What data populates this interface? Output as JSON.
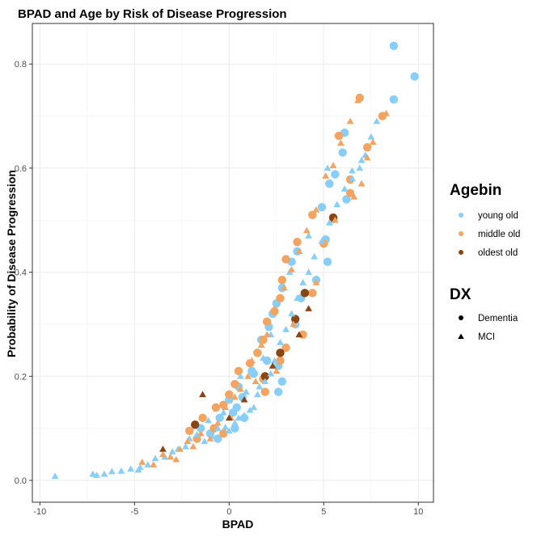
{
  "chart_data": {
    "type": "scatter",
    "title": "BPAD and Age by Risk of Disease Progression",
    "xlabel": "BPAD",
    "ylabel": "Probability of Disease Progression",
    "xlim": [
      -10.4,
      10.8
    ],
    "ylim": [
      -0.042,
      0.878
    ],
    "x_ticks": [
      -10,
      -5,
      0,
      5,
      10
    ],
    "y_ticks": [
      0.0,
      0.2,
      0.4,
      0.6,
      0.8
    ],
    "x_tick_labels": [
      "-10",
      "-5",
      "0",
      "5",
      "10"
    ],
    "y_tick_labels": [
      "0.0",
      "0.2",
      "0.4",
      "0.6",
      "0.8"
    ],
    "grid": true,
    "legend_position": "right",
    "legends": {
      "agebin": {
        "title": "Agebin",
        "entries": [
          {
            "label": "young old",
            "color": "#87CEFA"
          },
          {
            "label": "middle old",
            "color": "#F4A460"
          },
          {
            "label": "oldest old",
            "color": "#8B4513"
          }
        ]
      },
      "dx": {
        "title": "DX",
        "entries": [
          {
            "label": "Dementia",
            "shape": "circle"
          },
          {
            "label": "MCI",
            "shape": "triangle"
          }
        ]
      }
    },
    "series": [
      {
        "agebin": "young old",
        "dx": "Dementia",
        "color": "#87CEFA",
        "shape": "circle",
        "points": [
          [
            8.7,
            0.835
          ],
          [
            9.8,
            0.776
          ],
          [
            8.7,
            0.732
          ],
          [
            6.1,
            0.668
          ],
          [
            6.0,
            0.63
          ],
          [
            5.6,
            0.588
          ],
          [
            5.3,
            0.57
          ],
          [
            4.9,
            0.525
          ],
          [
            5.5,
            0.502
          ],
          [
            5.1,
            0.463
          ],
          [
            3.6,
            0.44
          ],
          [
            3.3,
            0.42
          ],
          [
            2.8,
            0.37
          ],
          [
            4.6,
            0.385
          ],
          [
            2.5,
            0.34
          ],
          [
            3.8,
            0.35
          ],
          [
            2.3,
            0.32
          ],
          [
            2.1,
            0.295
          ],
          [
            3.5,
            0.3
          ],
          [
            1.7,
            0.27
          ],
          [
            1.5,
            0.245
          ],
          [
            2.0,
            0.23
          ],
          [
            2.6,
            0.22
          ],
          [
            1.3,
            0.205
          ],
          [
            2.8,
            0.19
          ],
          [
            0.5,
            0.18
          ],
          [
            0.7,
            0.16
          ],
          [
            0.0,
            0.155
          ],
          [
            0.4,
            0.14
          ],
          [
            0.8,
            0.12
          ],
          [
            0.2,
            0.13
          ],
          [
            -0.5,
            0.12
          ],
          [
            -1.5,
            0.1
          ],
          [
            -1.0,
            0.09
          ],
          [
            -0.6,
            0.08
          ],
          [
            0.3,
            0.1
          ],
          [
            1.2,
            0.21
          ],
          [
            2.6,
            0.17
          ],
          [
            5.2,
            0.42
          ],
          [
            6.2,
            0.54
          ]
        ]
      },
      {
        "agebin": "middle old",
        "dx": "Dementia",
        "color": "#F4A460",
        "shape": "circle",
        "points": [
          [
            6.9,
            0.735
          ],
          [
            8.1,
            0.7
          ],
          [
            5.8,
            0.662
          ],
          [
            7.3,
            0.64
          ],
          [
            6.4,
            0.578
          ],
          [
            6.4,
            0.552
          ],
          [
            4.4,
            0.51
          ],
          [
            3.6,
            0.458
          ],
          [
            5.0,
            0.455
          ],
          [
            3.0,
            0.425
          ],
          [
            2.8,
            0.385
          ],
          [
            4.4,
            0.36
          ],
          [
            2.7,
            0.35
          ],
          [
            2.4,
            0.325
          ],
          [
            2.0,
            0.305
          ],
          [
            1.8,
            0.27
          ],
          [
            3.9,
            0.28
          ],
          [
            1.5,
            0.245
          ],
          [
            3.0,
            0.255
          ],
          [
            1.1,
            0.225
          ],
          [
            0.5,
            0.21
          ],
          [
            1.8,
            0.195
          ],
          [
            0.3,
            0.185
          ],
          [
            0.0,
            0.165
          ],
          [
            -0.3,
            0.145
          ],
          [
            -0.7,
            0.14
          ],
          [
            -1.4,
            0.12
          ],
          [
            -2.1,
            0.095
          ],
          [
            -1.7,
            0.08
          ],
          [
            -0.8,
            0.1
          ],
          [
            -0.3,
            0.09
          ],
          [
            1.9,
            0.17
          ],
          [
            2.7,
            0.23
          ]
        ]
      },
      {
        "agebin": "oldest old",
        "dx": "Dementia",
        "color": "#8B4513",
        "shape": "circle",
        "points": [
          [
            5.5,
            0.505
          ],
          [
            4.0,
            0.36
          ],
          [
            3.5,
            0.31
          ],
          [
            2.7,
            0.245
          ],
          [
            1.9,
            0.2
          ],
          [
            -1.8,
            0.107
          ]
        ]
      },
      {
        "agebin": "young old",
        "dx": "MCI",
        "color": "#87CEFA",
        "shape": "triangle",
        "points": [
          [
            -9.2,
            0.008
          ],
          [
            -7.0,
            0.01
          ],
          [
            -6.6,
            0.012
          ],
          [
            -6.2,
            0.017
          ],
          [
            -5.7,
            0.018
          ],
          [
            -5.2,
            0.022
          ],
          [
            -4.8,
            0.02
          ],
          [
            -4.3,
            0.03
          ],
          [
            -3.9,
            0.042
          ],
          [
            -3.4,
            0.045
          ],
          [
            -3.0,
            0.055
          ],
          [
            -2.7,
            0.06
          ],
          [
            -2.3,
            0.065
          ],
          [
            -2.1,
            0.08
          ],
          [
            -1.7,
            0.088
          ],
          [
            -1.3,
            0.075
          ],
          [
            -0.9,
            0.085
          ],
          [
            -0.6,
            0.1
          ],
          [
            -0.2,
            0.102
          ],
          [
            0.0,
            0.095
          ],
          [
            0.3,
            0.11
          ],
          [
            0.5,
            0.12
          ],
          [
            0.8,
            0.125
          ],
          [
            1.1,
            0.135
          ],
          [
            1.3,
            0.14
          ],
          [
            1.5,
            0.165
          ],
          [
            1.6,
            0.18
          ],
          [
            1.9,
            0.19
          ],
          [
            2.2,
            0.205
          ],
          [
            2.4,
            0.23
          ],
          [
            2.7,
            0.265
          ],
          [
            3.0,
            0.29
          ],
          [
            3.3,
            0.32
          ],
          [
            3.6,
            0.35
          ],
          [
            3.9,
            0.38
          ],
          [
            4.2,
            0.4
          ],
          [
            4.5,
            0.43
          ],
          [
            4.9,
            0.46
          ],
          [
            5.3,
            0.495
          ],
          [
            5.7,
            0.53
          ],
          [
            6.1,
            0.56
          ],
          [
            6.5,
            0.58
          ],
          [
            6.9,
            0.6
          ],
          [
            7.2,
            0.625
          ],
          [
            7.5,
            0.66
          ],
          [
            7.8,
            0.69
          ],
          [
            -0.3,
            0.13
          ],
          [
            0.6,
            0.2
          ],
          [
            1.8,
            0.235
          ],
          [
            2.2,
            0.28
          ],
          [
            0.9,
            0.17
          ],
          [
            -1.1,
            0.115
          ],
          [
            3.2,
            0.4
          ],
          [
            4.2,
            0.47
          ],
          [
            5.2,
            0.6
          ],
          [
            6.5,
            0.595
          ],
          [
            7.0,
            0.615
          ],
          [
            -4.7,
            0.025
          ],
          [
            -7.2,
            0.012
          ]
        ]
      },
      {
        "agebin": "middle old",
        "dx": "MCI",
        "color": "#F4A460",
        "shape": "triangle",
        "points": [
          [
            -4.6,
            0.035
          ],
          [
            -4.0,
            0.03
          ],
          [
            -3.5,
            0.05
          ],
          [
            -3.1,
            0.045
          ],
          [
            -2.6,
            0.06
          ],
          [
            -2.2,
            0.075
          ],
          [
            -1.9,
            0.065
          ],
          [
            -1.5,
            0.09
          ],
          [
            -1.0,
            0.08
          ],
          [
            -0.6,
            0.11
          ],
          [
            -0.2,
            0.14
          ],
          [
            0.3,
            0.16
          ],
          [
            0.6,
            0.175
          ],
          [
            1.0,
            0.2
          ],
          [
            1.4,
            0.19
          ],
          [
            1.7,
            0.26
          ],
          [
            2.0,
            0.28
          ],
          [
            2.4,
            0.33
          ],
          [
            2.9,
            0.37
          ],
          [
            3.3,
            0.405
          ],
          [
            3.7,
            0.44
          ],
          [
            4.1,
            0.48
          ],
          [
            4.6,
            0.52
          ],
          [
            5.1,
            0.585
          ],
          [
            5.5,
            0.605
          ],
          [
            5.9,
            0.648
          ],
          [
            6.4,
            0.69
          ],
          [
            6.8,
            0.73
          ],
          [
            7.0,
            0.57
          ],
          [
            7.3,
            0.62
          ],
          [
            7.6,
            0.65
          ],
          [
            8.3,
            0.705
          ],
          [
            0.1,
            0.12
          ],
          [
            1.2,
            0.23
          ],
          [
            2.5,
            0.21
          ],
          [
            -2.8,
            0.04
          ],
          [
            3.4,
            0.3
          ],
          [
            4.6,
            0.38
          ],
          [
            5.6,
            0.5
          ],
          [
            6.6,
            0.545
          ]
        ]
      },
      {
        "agebin": "oldest old",
        "dx": "MCI",
        "color": "#8B4513",
        "shape": "triangle",
        "points": [
          [
            -3.5,
            0.06
          ],
          [
            -1.4,
            0.165
          ],
          [
            0.0,
            0.12
          ],
          [
            2.3,
            0.22
          ],
          [
            3.7,
            0.28
          ],
          [
            4.2,
            0.33
          ],
          [
            0.8,
            0.155
          ]
        ]
      }
    ]
  }
}
